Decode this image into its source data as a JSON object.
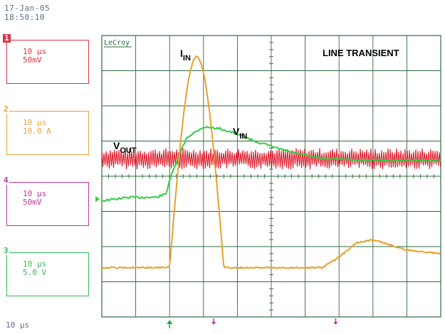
{
  "header": {
    "date": "17-Jan-05",
    "time": "18:50:10"
  },
  "brand": "LeCroy",
  "title": "LINE TRANSIENT",
  "timebase": "10 µs",
  "channels": [
    {
      "num": "1",
      "line1": "10 µs",
      "line2": "50mV",
      "color": "#dd3344"
    },
    {
      "num": "2",
      "line1": "10 µs",
      "line2": "10.0 A",
      "color": "#e8a040"
    },
    {
      "num": "4",
      "line1": "10 µs",
      "line2": "50mV",
      "color": "#bb3399"
    },
    {
      "num": "3",
      "line1": "10 µs",
      "line2": "5.0 V",
      "color": "#33bb55"
    }
  ],
  "labels": {
    "iin": {
      "main": "I",
      "sub": "IN"
    },
    "vin": {
      "main": "V",
      "sub": "IN"
    },
    "vout": {
      "main": "V",
      "sub": "OUT"
    }
  },
  "colors": {
    "grid": "#2f6a3e",
    "trace_current": "#e8a030",
    "trace_vin": "#33cc44",
    "trace_vout": "#dd1122",
    "marker_trigger": "#22aa44",
    "marker_cursor": "#bb3399"
  },
  "chart_data": {
    "type": "line",
    "title": "LINE TRANSIENT",
    "xlabel": "",
    "ylabel": "",
    "time_per_div": "10 µs",
    "grid": true,
    "x_divisions": 10,
    "y_divisions": 8,
    "x": [
      0,
      0.8,
      1.6,
      1.9,
      2.0,
      2.5,
      3.0,
      3.5,
      4.0,
      4.5,
      5.0,
      5.5,
      6.0,
      6.5,
      7.0,
      7.5,
      8.0,
      8.5,
      9.0,
      9.5,
      10.0
    ],
    "series": [
      {
        "name": "IN current",
        "color": "#e8a030",
        "y": [
          1.4,
          1.4,
          1.4,
          1.4,
          1.45,
          7.4,
          3.4,
          1.4,
          1.4,
          1.4,
          1.4,
          1.4,
          1.4,
          1.4,
          1.7,
          2.1,
          2.2,
          2.05,
          1.9,
          1.85,
          1.8
        ]
      },
      {
        "name": "IN voltage",
        "color": "#33cc44",
        "y": [
          3.3,
          3.4,
          3.4,
          3.5,
          3.9,
          5.1,
          5.4,
          5.35,
          5.2,
          5.0,
          4.85,
          4.7,
          4.6,
          4.5,
          4.5,
          4.45,
          4.45,
          4.45,
          4.45,
          4.45,
          4.45
        ]
      },
      {
        "name": "OUT voltage",
        "color": "#dd1122",
        "y": [
          4.5,
          4.5,
          4.5,
          4.5,
          4.5,
          4.5,
          4.5,
          4.5,
          4.5,
          4.5,
          4.5,
          4.5,
          4.5,
          4.5,
          4.5,
          4.5,
          4.5,
          4.5,
          4.5,
          4.5,
          4.5
        ]
      }
    ],
    "annotations": [
      "I_IN",
      "V_IN",
      "V_OUT",
      "LINE TRANSIENT"
    ]
  }
}
